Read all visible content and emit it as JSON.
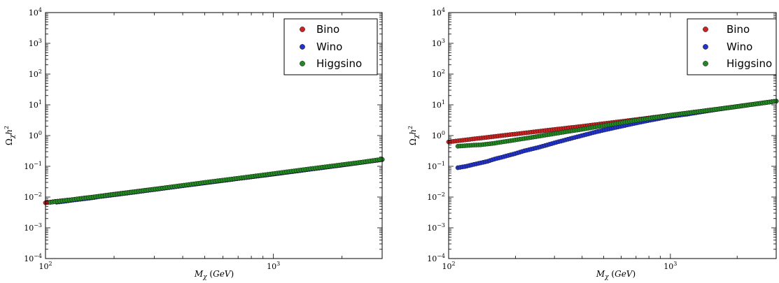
{
  "chart_data": [
    {
      "type": "scatter",
      "xscale": "log",
      "yscale": "log",
      "xlim": [
        100,
        3000
      ],
      "ylim": [
        0.0001,
        10000
      ],
      "xlabel": "M_χ (GeV)",
      "ylabel": "Ω_χ h²",
      "xticks": [
        {
          "base": "10",
          "exp": "2",
          "value": 100
        },
        {
          "base": "10",
          "exp": "3",
          "value": 1000
        }
      ],
      "yticks": [
        {
          "base": "10",
          "exp": "−4",
          "value": 0.0001
        },
        {
          "base": "10",
          "exp": "−3",
          "value": 0.001
        },
        {
          "base": "10",
          "exp": "−2",
          "value": 0.01
        },
        {
          "base": "10",
          "exp": "−1",
          "value": 0.1
        },
        {
          "base": "10",
          "exp": "0",
          "value": 1
        },
        {
          "base": "10",
          "exp": "1",
          "value": 10
        },
        {
          "base": "10",
          "exp": "2",
          "value": 100
        },
        {
          "base": "10",
          "exp": "3",
          "value": 1000
        },
        {
          "base": "10",
          "exp": "4",
          "value": 10000
        }
      ],
      "legend_position": "top-right",
      "series": [
        {
          "name": "Bino",
          "color": "#cc2222",
          "x": [
            100,
            110,
            130,
            150,
            165,
            175,
            200,
            300,
            500,
            1000,
            2000,
            3000
          ],
          "y": [
            0.0065,
            0.0072,
            0.0082,
            0.0094,
            0.0102,
            0.0108,
            0.0124,
            0.018,
            0.029,
            0.056,
            0.11,
            0.165
          ]
        },
        {
          "name": "Wino",
          "color": "#2233cc",
          "x": [
            112,
            120,
            135,
            150,
            165,
            170,
            200,
            250,
            300,
            500,
            700,
            1000,
            1500,
            2000,
            2500,
            3000
          ],
          "y": [
            0.0068,
            0.0072,
            0.0081,
            0.0089,
            0.0097,
            0.0102,
            0.0118,
            0.0146,
            0.0175,
            0.029,
            0.04,
            0.056,
            0.083,
            0.11,
            0.138,
            0.165
          ]
        },
        {
          "name": "Higgsino",
          "color": "#228822",
          "x": [
            105,
            115,
            125,
            140,
            160,
            180,
            200,
            250,
            300,
            400,
            500,
            700,
            1000,
            1500,
            2000,
            2500,
            3000
          ],
          "y": [
            0.0067,
            0.0073,
            0.0079,
            0.0088,
            0.0099,
            0.0111,
            0.0122,
            0.0151,
            0.018,
            0.024,
            0.03,
            0.041,
            0.058,
            0.086,
            0.113,
            0.14,
            0.17
          ]
        }
      ]
    },
    {
      "type": "scatter",
      "xscale": "log",
      "yscale": "log",
      "xlim": [
        100,
        3000
      ],
      "ylim": [
        0.0001,
        10000
      ],
      "xlabel": "M_χ (GeV)",
      "ylabel": "Ω_χ h²",
      "xticks": [
        {
          "base": "10",
          "exp": "2",
          "value": 100
        },
        {
          "base": "10",
          "exp": "3",
          "value": 1000
        }
      ],
      "yticks": [
        {
          "base": "10",
          "exp": "−4",
          "value": 0.0001
        },
        {
          "base": "10",
          "exp": "−3",
          "value": 0.001
        },
        {
          "base": "10",
          "exp": "−2",
          "value": 0.01
        },
        {
          "base": "10",
          "exp": "−1",
          "value": 0.1
        },
        {
          "base": "10",
          "exp": "0",
          "value": 1
        },
        {
          "base": "10",
          "exp": "1",
          "value": 10
        },
        {
          "base": "10",
          "exp": "2",
          "value": 100
        },
        {
          "base": "10",
          "exp": "3",
          "value": 1000
        },
        {
          "base": "10",
          "exp": "4",
          "value": 10000
        }
      ],
      "legend_position": "top-right",
      "series": [
        {
          "name": "Bino",
          "color": "#cc2222",
          "x": [
            100,
            115,
            130,
            150,
            170,
            200,
            250,
            300,
            400,
            500,
            700,
            1000,
            1500,
            2000,
            2500,
            3000
          ],
          "y": [
            0.62,
            0.7,
            0.78,
            0.88,
            0.98,
            1.12,
            1.35,
            1.58,
            2.0,
            2.45,
            3.3,
            4.6,
            6.7,
            8.8,
            11.0,
            13.2
          ]
        },
        {
          "name": "Wino",
          "color": "#2233cc",
          "x": [
            110,
            120,
            130,
            140,
            150,
            160,
            175,
            200,
            220,
            250,
            280,
            300,
            350,
            400,
            450,
            500,
            600,
            700,
            800,
            1000,
            1200,
            1500,
            2000,
            2500,
            3000
          ],
          "y": [
            0.09,
            0.1,
            0.115,
            0.13,
            0.145,
            0.17,
            0.2,
            0.26,
            0.32,
            0.4,
            0.5,
            0.58,
            0.78,
            1.0,
            1.25,
            1.5,
            2.0,
            2.55,
            3.1,
            4.2,
            5.0,
            6.5,
            8.8,
            11.0,
            13.2
          ]
        },
        {
          "name": "Higgsino",
          "color": "#228822",
          "x": [
            110,
            120,
            130,
            140,
            150,
            160,
            170,
            180,
            200,
            225,
            250,
            300,
            350,
            400,
            500,
            600,
            700,
            1000,
            1500,
            2000,
            2500,
            3000
          ],
          "y": [
            0.45,
            0.47,
            0.49,
            0.5,
            0.53,
            0.56,
            0.6,
            0.64,
            0.72,
            0.82,
            0.93,
            1.15,
            1.38,
            1.6,
            2.1,
            2.6,
            3.1,
            4.6,
            6.7,
            8.8,
            11.0,
            13.2
          ]
        }
      ]
    }
  ]
}
